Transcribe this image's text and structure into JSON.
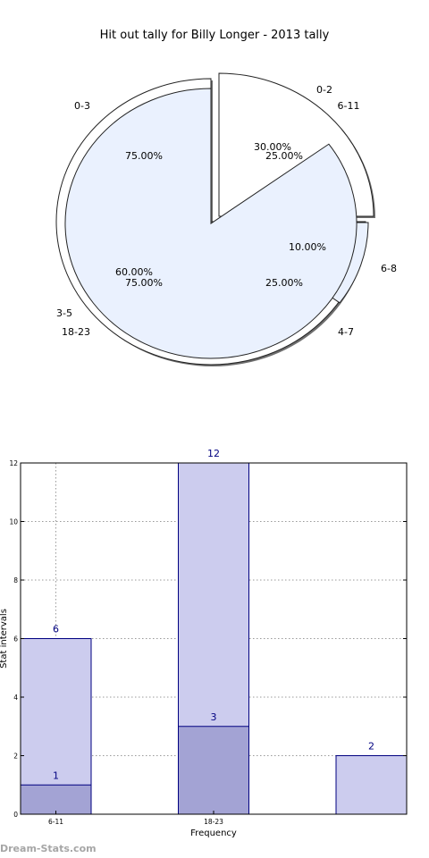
{
  "watermark": "Dream-Stats.com",
  "colors": {
    "pie_fill_outer": "#ffffff",
    "pie_fill_inner": "#eaf1fe",
    "bar_light": "#ccccee",
    "bar_dark": "#a3a3d4",
    "bar_stroke": "#000080",
    "label_blue": "#000080"
  },
  "chart_data": [
    {
      "type": "pie",
      "title": "Hit out tally for Billy Longer - 2013 tally",
      "rings": [
        {
          "name": "outer",
          "slices": [
            {
              "label": "0-2",
              "percent": 25.0,
              "percent_label": "25.00%"
            },
            {
              "label": "0-3",
              "percent": 75.0,
              "percent_label": "75.00%"
            }
          ]
        },
        {
          "name": "inner",
          "slices": [
            {
              "label": "6-11",
              "percent": 30.0,
              "percent_label": "30.00%"
            },
            {
              "label": "6-8",
              "percent": 10.0,
              "percent_label": "10.00%"
            },
            {
              "label": "3-5",
              "percent": 60.0,
              "percent_label": "60.00%"
            }
          ]
        }
      ],
      "extra_labels": [
        {
          "label": "18-23",
          "percent_label": "75.00%"
        },
        {
          "label": "4-7",
          "percent_label": "25.00%"
        }
      ]
    },
    {
      "type": "bar",
      "xlabel": "Frequency",
      "ylabel": "Stat intervals",
      "ylim": [
        0,
        12
      ],
      "yticks": [
        0,
        2,
        4,
        6,
        8,
        10,
        12
      ],
      "grid": true,
      "categories": [
        "6-11",
        "18-23",
        ""
      ],
      "series": [
        {
          "values": [
            6,
            12,
            2
          ],
          "style": "light"
        },
        {
          "values": [
            1,
            3,
            null
          ],
          "style": "dark"
        }
      ]
    }
  ]
}
